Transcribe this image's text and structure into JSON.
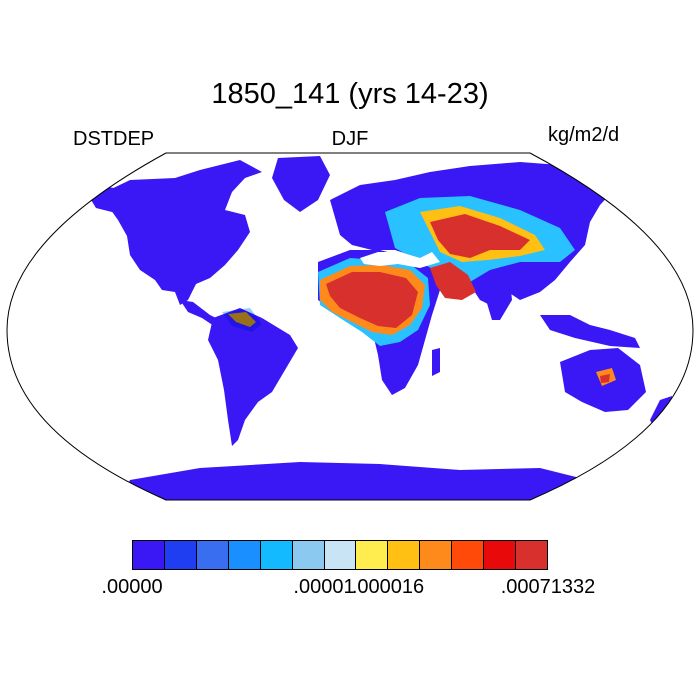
{
  "title": "1850_141 (yrs 14-23)",
  "left_label": "DSTDEP",
  "center_label": "DJF",
  "units": "kg/m2/d",
  "colors": {
    "ocean": "#ffffff",
    "outline": "#000000",
    "low": "#3a17f5",
    "mid_blue": "#1a8fff",
    "cyan": "#29c1ff",
    "yellow": "#fbe34a",
    "orange": "#ff8a1c",
    "red": "#d8302c"
  },
  "colorbar": {
    "colors": [
      "#3a17f5",
      "#1f3ef2",
      "#3a6ef0",
      "#1a8fff",
      "#14baff",
      "#8cc9f0",
      "#c8e4f5",
      "#ffec4e",
      "#ffbf13",
      "#ff8a1c",
      "#ff4a0a",
      "#e80a0a",
      "#d8302c"
    ],
    "tick_labels": [
      ".00000",
      ".00001",
      ".000016",
      ".00071332"
    ],
    "tick_box_index": [
      0,
      6,
      8,
      13
    ]
  }
}
